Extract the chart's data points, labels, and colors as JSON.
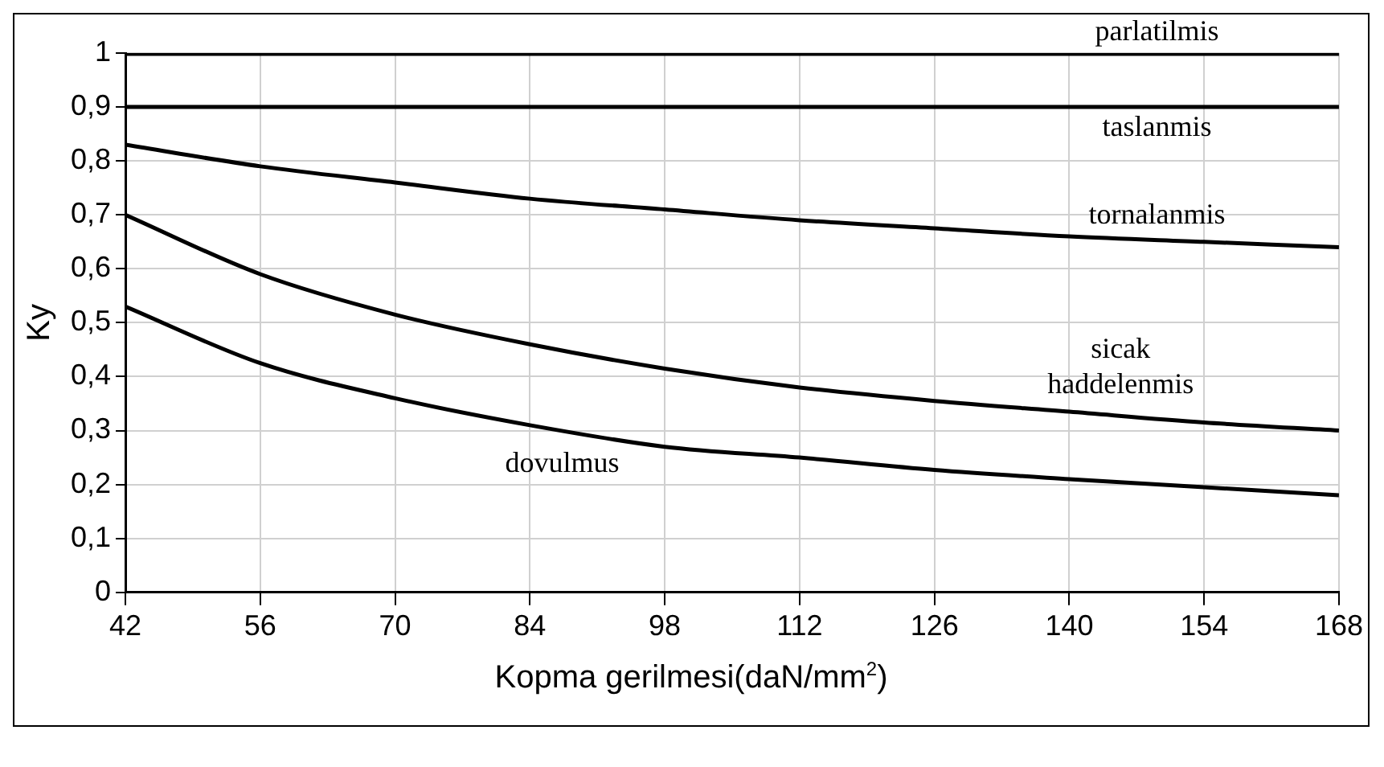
{
  "chart_data": {
    "type": "line",
    "xlabel": "Kopma gerilmesi(daN/mm$^{2}$)",
    "ylabel": "Ky",
    "x": [
      42,
      56,
      70,
      84,
      98,
      112,
      126,
      140,
      154,
      168
    ],
    "xlim": [
      42,
      168
    ],
    "xticks": [
      42,
      56,
      70,
      84,
      98,
      112,
      126,
      140,
      154,
      168
    ],
    "ylim": [
      0,
      1
    ],
    "yticks": [
      {
        "value": 0,
        "label": "0"
      },
      {
        "value": 0.1,
        "label": "0,1"
      },
      {
        "value": 0.2,
        "label": "0,2"
      },
      {
        "value": 0.3,
        "label": "0,3"
      },
      {
        "value": 0.4,
        "label": "0,4"
      },
      {
        "value": 0.5,
        "label": "0,5"
      },
      {
        "value": 0.6,
        "label": "0,6"
      },
      {
        "value": 0.7,
        "label": "0,7"
      },
      {
        "value": 0.8,
        "label": "0,8"
      },
      {
        "value": 0.9,
        "label": "0,9"
      },
      {
        "value": 1,
        "label": "1"
      }
    ],
    "grid": true,
    "legend": false,
    "marker": "none",
    "line_style": "solid",
    "series": [
      {
        "name": "parlatilmis",
        "color": "#000000",
        "values": [
          1,
          1,
          1,
          1,
          1,
          1,
          1,
          1,
          1,
          1
        ]
      },
      {
        "name": "taslanmis",
        "color": "#000000",
        "values": [
          0.9,
          0.9,
          0.9,
          0.9,
          0.9,
          0.9,
          0.9,
          0.9,
          0.9,
          0.9
        ]
      },
      {
        "name": "tornalanmis",
        "color": "#000000",
        "values": [
          0.83,
          0.79,
          0.76,
          0.73,
          0.71,
          0.69,
          0.675,
          0.66,
          0.65,
          0.64
        ]
      },
      {
        "name": "sicak haddelenmis",
        "color": "#000000",
        "values": [
          0.7,
          0.59,
          0.515,
          0.46,
          0.415,
          0.38,
          0.355,
          0.335,
          0.315,
          0.3
        ]
      },
      {
        "name": "dovulmus",
        "color": "#000000",
        "values": [
          0.53,
          0.425,
          0.36,
          0.31,
          0.27,
          0.25,
          0.227,
          0.21,
          0.195,
          0.18
        ]
      }
    ]
  }
}
